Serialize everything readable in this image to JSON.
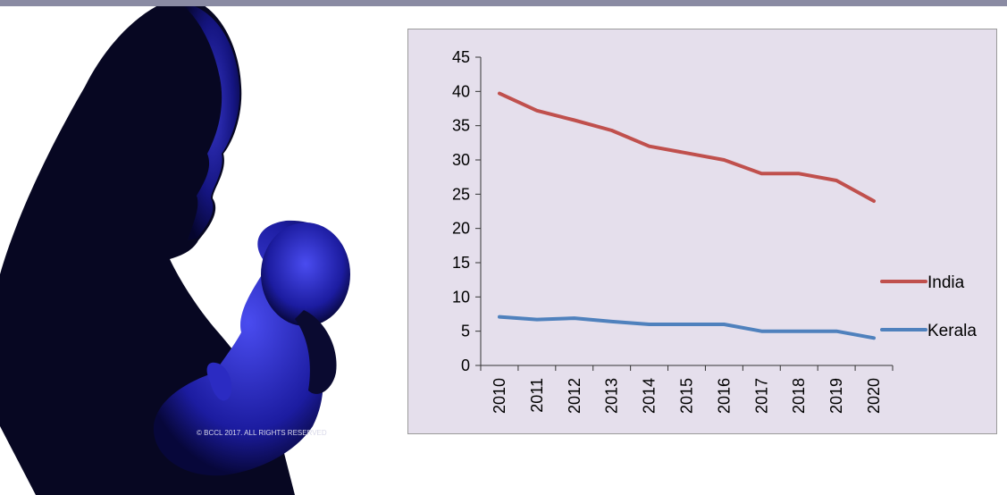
{
  "colors": {
    "top_bar": "#8a8ba3",
    "plot_bg": "#e5dfec",
    "axis": "#333333",
    "india": "#c0504d",
    "kerala": "#4f81bd"
  },
  "photo": {
    "description_icon": "mother-holding-baby-silhouette",
    "watermark": "© BCCL 2017. ALL RIGHTS RESERVED"
  },
  "chart_data": {
    "type": "line",
    "title": "",
    "xlabel": "",
    "ylabel": "",
    "categories": [
      "2010",
      "2011",
      "2012",
      "2013",
      "2014",
      "2015",
      "2016",
      "2017",
      "2018",
      "2019",
      "2020"
    ],
    "ylim": [
      0,
      45
    ],
    "yticks": [
      0,
      5,
      10,
      15,
      20,
      25,
      30,
      35,
      40,
      45
    ],
    "y_tick_labels": [
      "0",
      "5",
      "10",
      "15",
      "20",
      "25",
      "30",
      "35",
      "40",
      "45"
    ],
    "grid": false,
    "legend_position": "right",
    "series": [
      {
        "name": "India",
        "color": "#c0504d",
        "values": [
          39.7,
          37.2,
          35.8,
          34.3,
          32.0,
          31.0,
          30.0,
          28.0,
          28.0,
          27.0,
          24.0
        ]
      },
      {
        "name": "Kerala",
        "color": "#4f81bd",
        "values": [
          7.1,
          6.7,
          6.9,
          6.4,
          6.0,
          6.0,
          6.0,
          5.0,
          5.0,
          5.0,
          4.0
        ]
      }
    ]
  }
}
